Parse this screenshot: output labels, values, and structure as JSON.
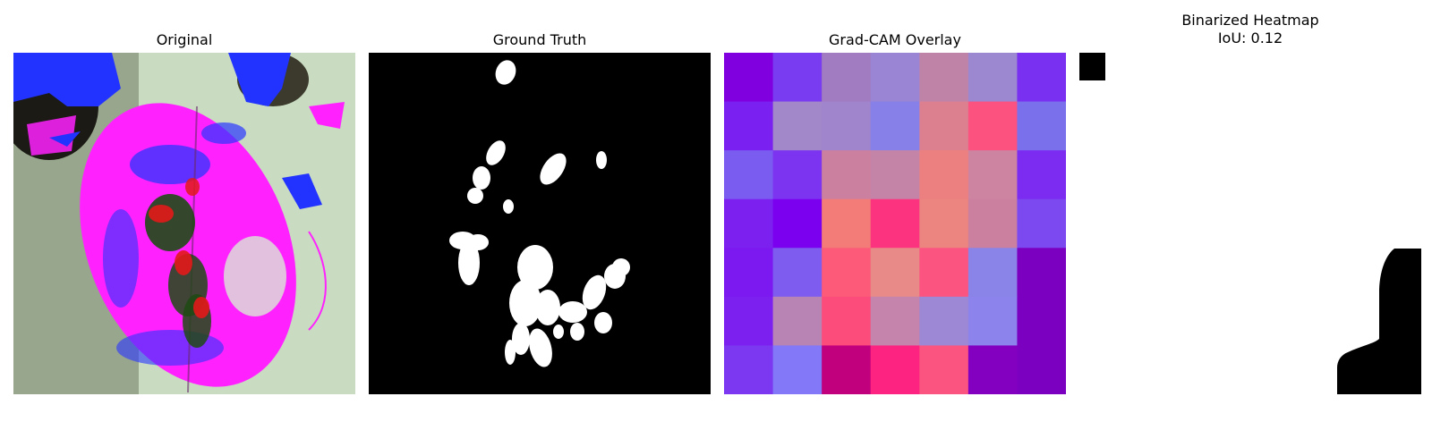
{
  "panels": {
    "original": {
      "title": "Original"
    },
    "ground_truth": {
      "title": "Ground Truth"
    },
    "gradcam": {
      "title": "Grad-CAM Overlay",
      "grid_rows": 7,
      "grid_cols": 7,
      "cells": [
        [
          "#8000e0",
          "#7a3cf0",
          "#a27cc0",
          "#9a84d4",
          "#c083a8",
          "#9b88d0",
          "#7a30f0"
        ],
        [
          "#7a20f0",
          "#a288c8",
          "#a084cc",
          "#8680e8",
          "#dc8090",
          "#fc5280",
          "#7a70ec"
        ],
        [
          "#7a5cf0",
          "#7c34f0",
          "#cc80a0",
          "#c484a8",
          "#ec8080",
          "#cc84a0",
          "#7c2cf0"
        ],
        [
          "#7c20f0",
          "#7c00f0",
          "#f47c78",
          "#fc3480",
          "#ec8480",
          "#cc80a0",
          "#7c48f0"
        ],
        [
          "#7c18f0",
          "#7e5cf0",
          "#fc5a78",
          "#e88a88",
          "#fc5480",
          "#8a84e8",
          "#7c00c0"
        ],
        [
          "#7c20f0",
          "#b884b4",
          "#fc4c7c",
          "#c484ac",
          "#9c88d4",
          "#8c84ec",
          "#7c00c0"
        ],
        [
          "#7c38f0",
          "#8278f8",
          "#c0007c",
          "#fc2480",
          "#fc5480",
          "#8400c0",
          "#7c00c0"
        ]
      ]
    },
    "binarized": {
      "title": "Binarized Heatmap\nIoU: 0.12"
    }
  },
  "colors": {
    "mask_bg": "#000000",
    "mask_fg": "#ffffff",
    "leaf_magenta": "#ff22ff",
    "leaf_blue": "#2244ff",
    "spot_red": "#e21a1a",
    "spot_green": "#1e4a14"
  }
}
